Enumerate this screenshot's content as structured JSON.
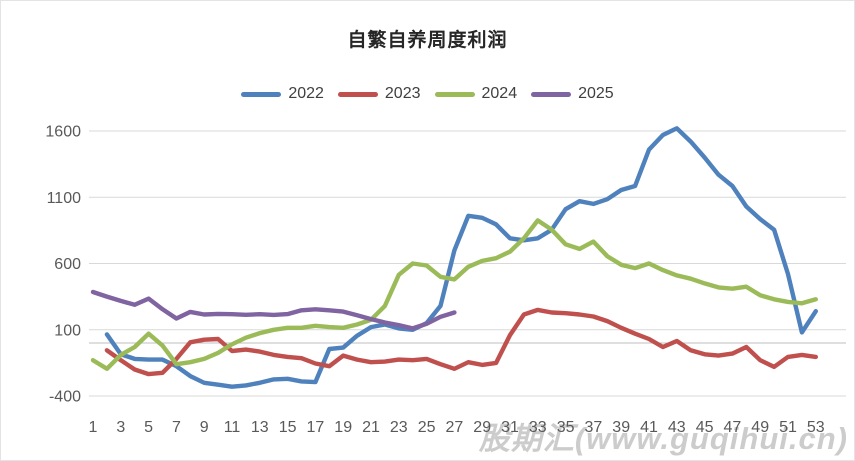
{
  "chart": {
    "title": "自繁自养周度利润",
    "watermark": "股期汇(www.guqihui.cn)"
  },
  "chart_data": {
    "type": "line",
    "title": "自繁自养周度利润",
    "xlabel": "",
    "ylabel": "",
    "x_tick_labels": [
      1,
      3,
      5,
      7,
      9,
      11,
      13,
      15,
      17,
      19,
      21,
      23,
      25,
      27,
      29,
      31,
      33,
      35,
      37,
      39,
      41,
      43,
      45,
      47,
      49,
      51,
      53
    ],
    "x_range": [
      1,
      53
    ],
    "y_ticks": [
      -400,
      100,
      600,
      1100,
      1600
    ],
    "ylim": [
      -400,
      1650
    ],
    "grid": true,
    "zero_axis_line": true,
    "legend_position": "top",
    "gridline_color": "#d9d9d9",
    "zero_line_color": "#bfbfbf",
    "axis_text_color": "#595959",
    "series": [
      {
        "name": "2022",
        "color": "#4F81BD",
        "start_week": 2,
        "values": [
          65,
          -85,
          -120,
          -125,
          -125,
          -175,
          -250,
          -300,
          -315,
          -330,
          -320,
          -300,
          -275,
          -270,
          -290,
          -295,
          -45,
          -35,
          55,
          120,
          140,
          110,
          100,
          150,
          280,
          700,
          960,
          945,
          895,
          790,
          775,
          790,
          855,
          1010,
          1070,
          1050,
          1085,
          1155,
          1185,
          1460,
          1570,
          1620,
          1520,
          1400,
          1270,
          1185,
          1030,
          935,
          855,
          520,
          80,
          240
        ]
      },
      {
        "name": "2023",
        "color": "#C0504D",
        "start_week": 2,
        "values": [
          -55,
          -130,
          -200,
          -235,
          -225,
          -120,
          5,
          25,
          30,
          -60,
          -50,
          -65,
          -90,
          -105,
          -115,
          -155,
          -175,
          -95,
          -125,
          -145,
          -140,
          -125,
          -130,
          -120,
          -160,
          -195,
          -145,
          -165,
          -150,
          60,
          215,
          250,
          230,
          225,
          215,
          200,
          165,
          115,
          70,
          30,
          -30,
          15,
          -55,
          -85,
          -95,
          -80,
          -30,
          -130,
          -180,
          -105,
          -90,
          -105
        ]
      },
      {
        "name": "2024",
        "color": "#9BBB59",
        "start_week": 1,
        "values": [
          -130,
          -195,
          -90,
          -30,
          70,
          -20,
          -160,
          -145,
          -120,
          -75,
          -10,
          40,
          75,
          100,
          115,
          115,
          130,
          120,
          115,
          140,
          175,
          280,
          515,
          600,
          585,
          500,
          480,
          575,
          620,
          640,
          690,
          790,
          925,
          855,
          745,
          710,
          765,
          655,
          590,
          565,
          600,
          550,
          510,
          485,
          450,
          420,
          410,
          425,
          360,
          330,
          310,
          300,
          330
        ]
      },
      {
        "name": "2025",
        "color": "#8064A2",
        "start_week": 1,
        "values": [
          385,
          350,
          318,
          288,
          335,
          255,
          185,
          235,
          215,
          220,
          217,
          213,
          217,
          212,
          218,
          247,
          254,
          247,
          237,
          210,
          180,
          155,
          135,
          110,
          145,
          198,
          230
        ]
      }
    ]
  }
}
